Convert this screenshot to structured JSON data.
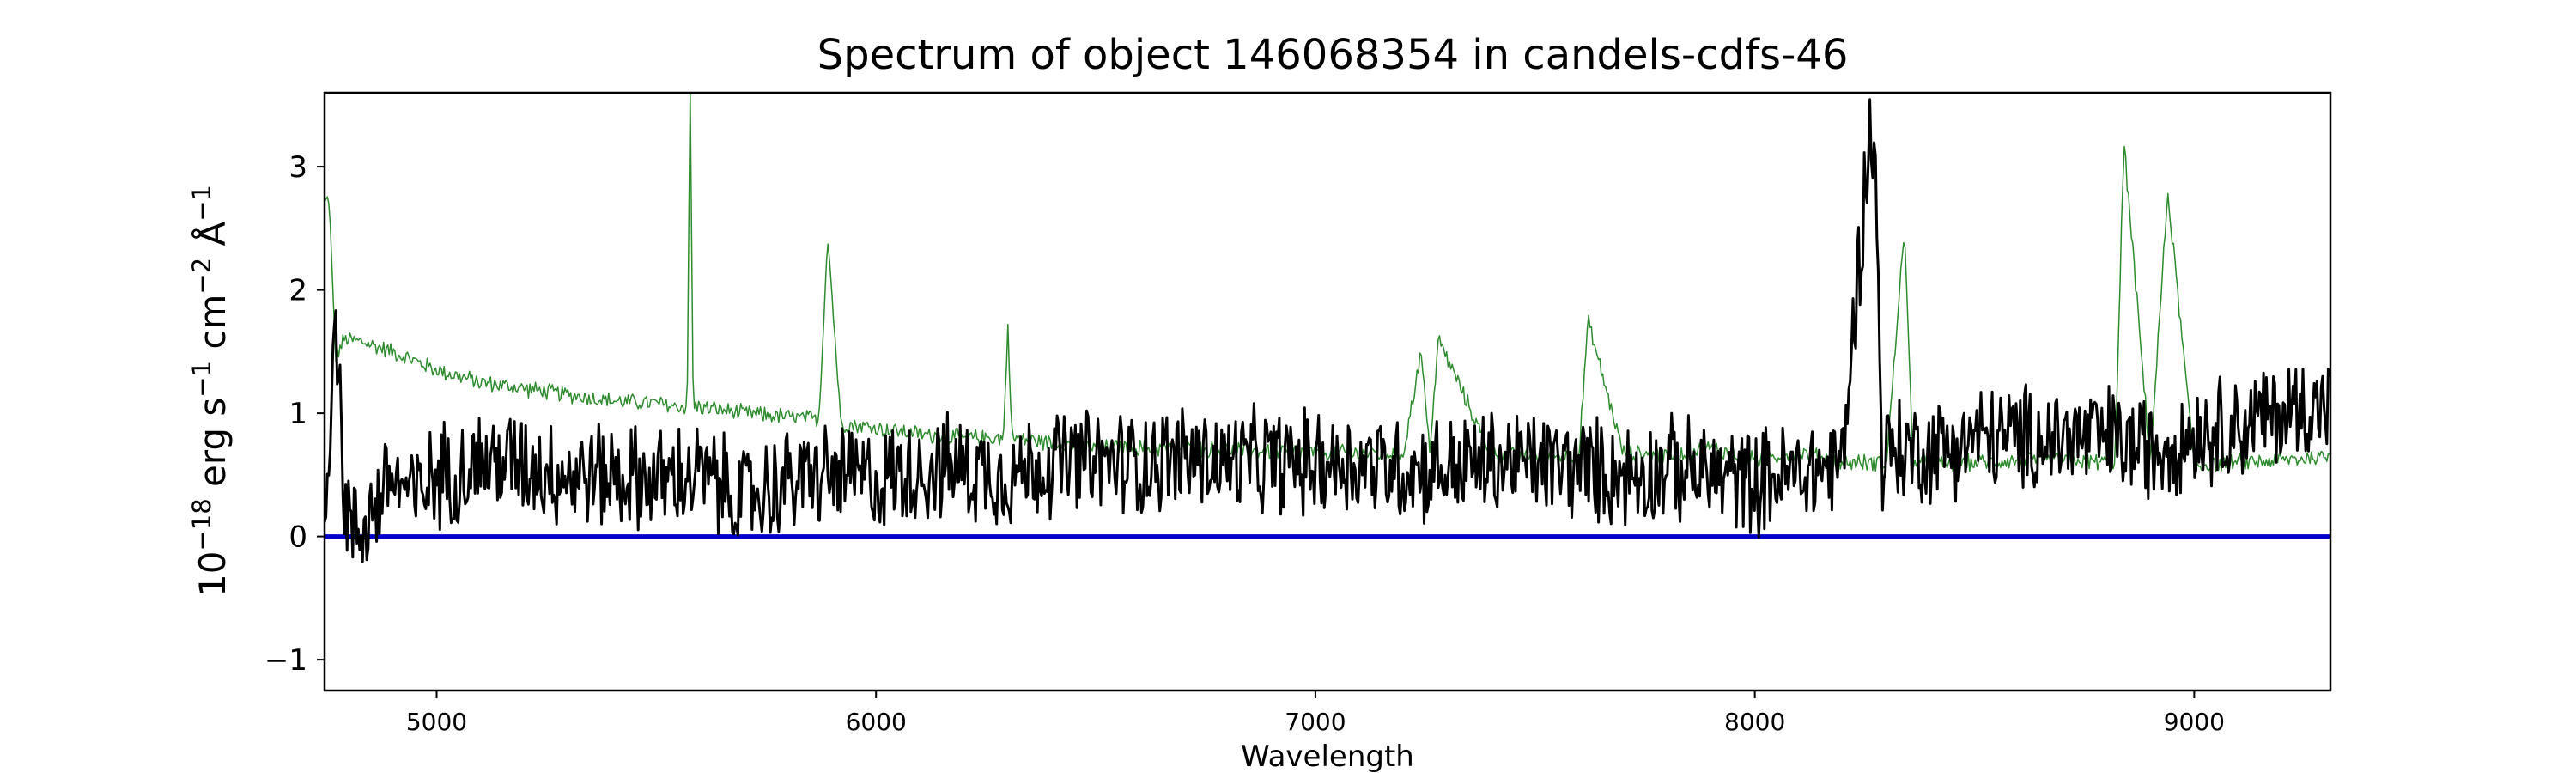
{
  "chart_data": {
    "type": "line",
    "title": "Spectrum of object 146068354 in candels-cdfs-46",
    "xlabel": "Wavelength",
    "ylabel": {
      "base": "10",
      "exp": "−18",
      "units": [
        {
          "text": " erg s",
          "sup": "−1"
        },
        {
          "text": " cm",
          "sup": "−2"
        },
        {
          "text": " Å",
          "sup": "−1"
        }
      ]
    },
    "xlim": [
      4745,
      9310
    ],
    "ylim": [
      -1.25,
      3.6
    ],
    "xticks": [
      5000,
      6000,
      7000,
      8000,
      9000
    ],
    "xtick_labels": [
      "5000",
      "6000",
      "7000",
      "8000",
      "9000"
    ],
    "yticks": [
      -1,
      0,
      1,
      2,
      3
    ],
    "ytick_labels": [
      "−1",
      "0",
      "1",
      "2",
      "3"
    ],
    "grid": false,
    "legend": "none",
    "series": [
      {
        "color": "#000000",
        "width": 3,
        "noise_amp": 0.38,
        "x": [
          4745,
          4770,
          4790,
          4810,
          4850,
          4900,
          4950,
          5000,
          5100,
          5200,
          5300,
          5400,
          5500,
          5600,
          5700,
          5800,
          5900,
          6000,
          6100,
          6200,
          6300,
          6400,
          6500,
          6600,
          6700,
          6800,
          6900,
          7000,
          7100,
          7200,
          7300,
          7400,
          7500,
          7600,
          7700,
          7800,
          7900,
          8000,
          8100,
          8200,
          8262,
          8275,
          8290,
          8300,
          8400,
          8500,
          8600,
          8700,
          8800,
          8900,
          9000,
          9100,
          9200,
          9310
        ],
        "y": [
          0.2,
          1.9,
          0.3,
          0.0,
          0.2,
          0.5,
          0.3,
          0.5,
          0.6,
          0.6,
          0.5,
          0.5,
          0.45,
          0.5,
          0.3,
          0.45,
          0.5,
          0.45,
          0.55,
          0.55,
          0.5,
          0.6,
          0.6,
          0.6,
          0.65,
          0.6,
          0.6,
          0.6,
          0.6,
          0.55,
          0.55,
          0.6,
          0.6,
          0.55,
          0.5,
          0.55,
          0.5,
          0.45,
          0.5,
          0.6,
          3.35,
          2.9,
          0.6,
          0.7,
          0.7,
          0.8,
          0.8,
          0.8,
          0.8,
          0.7,
          0.85,
          0.9,
          1.0,
          1.1
        ]
      },
      {
        "color": "#2e8b2e",
        "width": 1.5,
        "noise_amp": 0.06,
        "x": [
          4745,
          4755,
          4770,
          4790,
          4830,
          4900,
          5000,
          5100,
          5200,
          5300,
          5400,
          5500,
          5550,
          5570,
          5577,
          5584,
          5600,
          5700,
          5800,
          5870,
          5890,
          5900,
          5920,
          6000,
          6100,
          6200,
          6290,
          6300,
          6310,
          6400,
          6500,
          6600,
          6800,
          7000,
          7200,
          7240,
          7260,
          7280,
          7400,
          7600,
          7620,
          7700,
          7800,
          7900,
          8000,
          8100,
          8200,
          8300,
          8340,
          8360,
          8400,
          8500,
          8600,
          8700,
          8820,
          8840,
          8900,
          8940,
          9000,
          9100,
          9200,
          9310
        ],
        "y": [
          2.7,
          2.75,
          1.45,
          1.6,
          1.58,
          1.5,
          1.35,
          1.25,
          1.2,
          1.15,
          1.1,
          1.08,
          1.05,
          1.06,
          3.6,
          1.06,
          1.05,
          1.0,
          0.97,
          0.95,
          2.45,
          1.95,
          0.92,
          0.88,
          0.83,
          0.8,
          0.8,
          1.7,
          0.8,
          0.76,
          0.72,
          0.72,
          0.7,
          0.68,
          0.67,
          1.5,
          0.7,
          1.6,
          0.66,
          0.65,
          1.75,
          0.68,
          0.65,
          0.72,
          0.62,
          0.68,
          0.6,
          0.6,
          2.5,
          0.6,
          0.58,
          0.6,
          0.62,
          0.62,
          0.6,
          3.2,
          0.6,
          2.8,
          0.58,
          0.6,
          0.62,
          0.65
        ]
      },
      {
        "color": "#0000cc",
        "width": 5,
        "noise_amp": 0,
        "x": [
          4745,
          9310
        ],
        "y": [
          0,
          0
        ]
      }
    ]
  }
}
